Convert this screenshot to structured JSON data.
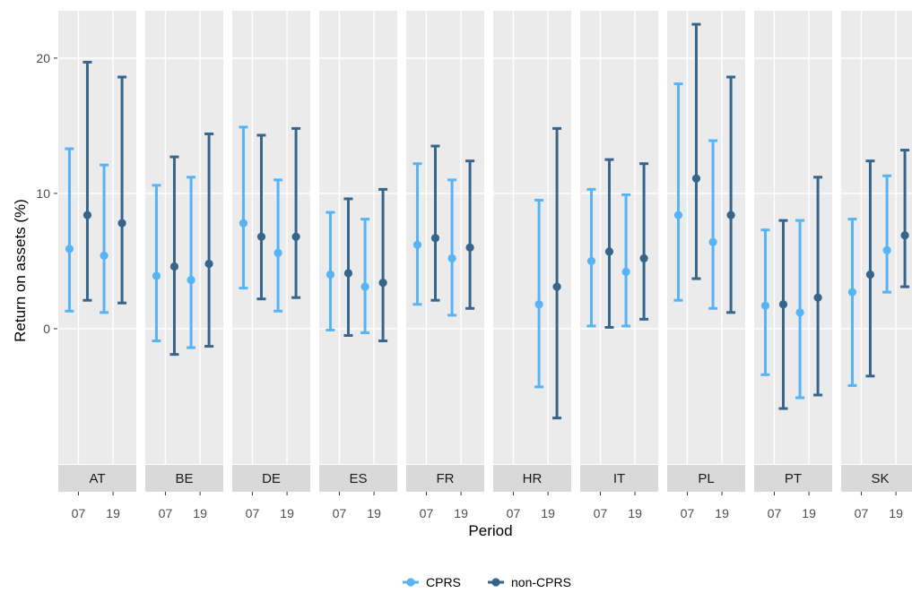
{
  "chart_data": {
    "type": "errorbar",
    "facet_variable": "country",
    "xlabel": "Period",
    "ylabel": "Return on assets (%)",
    "ylim": [
      -10,
      23.5
    ],
    "y_ticks": [
      0,
      10,
      20
    ],
    "grid": true,
    "legend_position": "bottom",
    "categories": [
      "07",
      "19"
    ],
    "series": [
      {
        "name": "CPRS",
        "color": "#56b4f5"
      },
      {
        "name": "non-CPRS",
        "color": "#36648b"
      }
    ],
    "facets": [
      {
        "label": "AT",
        "points": [
          {
            "x": "07",
            "series": "CPRS",
            "y": 5.9,
            "low": 1.3,
            "high": 13.3
          },
          {
            "x": "07",
            "series": "non-CPRS",
            "y": 8.4,
            "low": 2.1,
            "high": 19.7
          },
          {
            "x": "19",
            "series": "CPRS",
            "y": 5.4,
            "low": 1.2,
            "high": 12.1
          },
          {
            "x": "19",
            "series": "non-CPRS",
            "y": 7.8,
            "low": 1.9,
            "high": 18.6
          }
        ]
      },
      {
        "label": "BE",
        "points": [
          {
            "x": "07",
            "series": "CPRS",
            "y": 3.9,
            "low": -0.9,
            "high": 10.6
          },
          {
            "x": "07",
            "series": "non-CPRS",
            "y": 4.6,
            "low": -1.9,
            "high": 12.7
          },
          {
            "x": "19",
            "series": "CPRS",
            "y": 3.6,
            "low": -1.4,
            "high": 11.2
          },
          {
            "x": "19",
            "series": "non-CPRS",
            "y": 4.8,
            "low": -1.3,
            "high": 14.4
          }
        ]
      },
      {
        "label": "DE",
        "points": [
          {
            "x": "07",
            "series": "CPRS",
            "y": 7.8,
            "low": 3.0,
            "high": 14.9
          },
          {
            "x": "07",
            "series": "non-CPRS",
            "y": 6.8,
            "low": 2.2,
            "high": 14.3
          },
          {
            "x": "19",
            "series": "CPRS",
            "y": 5.6,
            "low": 1.3,
            "high": 11.0
          },
          {
            "x": "19",
            "series": "non-CPRS",
            "y": 6.8,
            "low": 2.3,
            "high": 14.8
          }
        ]
      },
      {
        "label": "ES",
        "points": [
          {
            "x": "07",
            "series": "CPRS",
            "y": 4.0,
            "low": -0.1,
            "high": 8.6
          },
          {
            "x": "07",
            "series": "non-CPRS",
            "y": 4.1,
            "low": -0.5,
            "high": 9.6
          },
          {
            "x": "19",
            "series": "CPRS",
            "y": 3.1,
            "low": -0.3,
            "high": 8.1
          },
          {
            "x": "19",
            "series": "non-CPRS",
            "y": 3.4,
            "low": -0.9,
            "high": 10.3
          }
        ]
      },
      {
        "label": "FR",
        "points": [
          {
            "x": "07",
            "series": "CPRS",
            "y": 6.2,
            "low": 1.8,
            "high": 12.2
          },
          {
            "x": "07",
            "series": "non-CPRS",
            "y": 6.7,
            "low": 2.1,
            "high": 13.5
          },
          {
            "x": "19",
            "series": "CPRS",
            "y": 5.2,
            "low": 1.0,
            "high": 11.0
          },
          {
            "x": "19",
            "series": "non-CPRS",
            "y": 6.0,
            "low": 1.5,
            "high": 12.4
          }
        ]
      },
      {
        "label": "HR",
        "points": [
          {
            "x": "19",
            "series": "CPRS",
            "y": 1.8,
            "low": -4.3,
            "high": 9.5
          },
          {
            "x": "19",
            "series": "non-CPRS",
            "y": 3.1,
            "low": -6.6,
            "high": 14.8
          }
        ]
      },
      {
        "label": "IT",
        "points": [
          {
            "x": "07",
            "series": "CPRS",
            "y": 5.0,
            "low": 0.2,
            "high": 10.3
          },
          {
            "x": "07",
            "series": "non-CPRS",
            "y": 5.7,
            "low": 0.1,
            "high": 12.5
          },
          {
            "x": "19",
            "series": "CPRS",
            "y": 4.2,
            "low": 0.2,
            "high": 9.9
          },
          {
            "x": "19",
            "series": "non-CPRS",
            "y": 5.2,
            "low": 0.7,
            "high": 12.2
          }
        ]
      },
      {
        "label": "PL",
        "points": [
          {
            "x": "07",
            "series": "CPRS",
            "y": 8.4,
            "low": 2.1,
            "high": 18.1
          },
          {
            "x": "07",
            "series": "non-CPRS",
            "y": 11.1,
            "low": 3.7,
            "high": 22.5
          },
          {
            "x": "19",
            "series": "CPRS",
            "y": 6.4,
            "low": 1.5,
            "high": 13.9
          },
          {
            "x": "19",
            "series": "non-CPRS",
            "y": 8.4,
            "low": 1.2,
            "high": 18.6
          }
        ]
      },
      {
        "label": "PT",
        "points": [
          {
            "x": "07",
            "series": "CPRS",
            "y": 1.7,
            "low": -3.4,
            "high": 7.3
          },
          {
            "x": "07",
            "series": "non-CPRS",
            "y": 1.8,
            "low": -5.9,
            "high": 8.0
          },
          {
            "x": "19",
            "series": "CPRS",
            "y": 1.2,
            "low": -5.1,
            "high": 8.0
          },
          {
            "x": "19",
            "series": "non-CPRS",
            "y": 2.3,
            "low": -4.9,
            "high": 11.2
          }
        ]
      },
      {
        "label": "SK",
        "points": [
          {
            "x": "07",
            "series": "CPRS",
            "y": 2.7,
            "low": -4.2,
            "high": 8.1
          },
          {
            "x": "07",
            "series": "non-CPRS",
            "y": 4.0,
            "low": -3.5,
            "high": 12.4
          },
          {
            "x": "19",
            "series": "CPRS",
            "y": 5.8,
            "low": 2.7,
            "high": 11.3
          },
          {
            "x": "19",
            "series": "non-CPRS",
            "y": 6.9,
            "low": 3.1,
            "high": 13.2
          }
        ]
      }
    ]
  }
}
